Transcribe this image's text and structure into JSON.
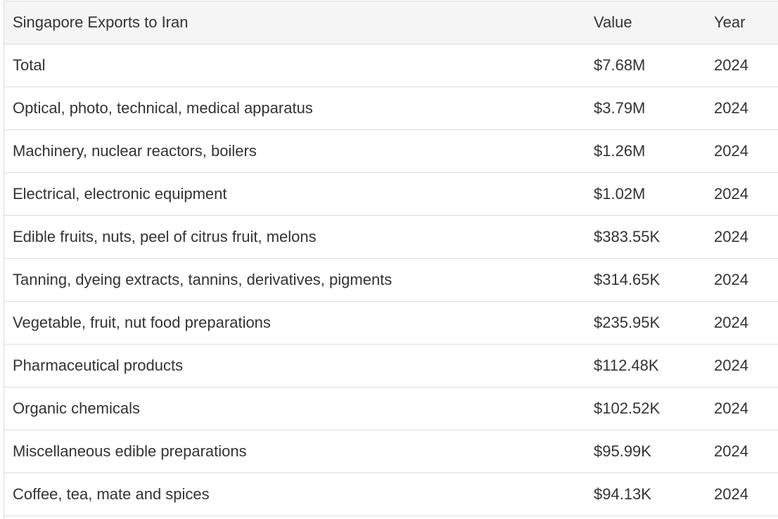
{
  "table": {
    "headers": {
      "name": "Singapore Exports to Iran",
      "value": "Value",
      "year": "Year"
    },
    "rows": [
      {
        "name": "Total",
        "value": "$7.68M",
        "year": "2024"
      },
      {
        "name": "Optical, photo, technical, medical apparatus",
        "value": "$3.79M",
        "year": "2024"
      },
      {
        "name": "Machinery, nuclear reactors, boilers",
        "value": "$1.26M",
        "year": "2024"
      },
      {
        "name": "Electrical, electronic equipment",
        "value": "$1.02M",
        "year": "2024"
      },
      {
        "name": "Edible fruits, nuts, peel of citrus fruit, melons",
        "value": "$383.55K",
        "year": "2024"
      },
      {
        "name": "Tanning, dyeing extracts, tannins, derivatives, pigments",
        "value": "$314.65K",
        "year": "2024"
      },
      {
        "name": "Vegetable, fruit, nut food preparations",
        "value": "$235.95K",
        "year": "2024"
      },
      {
        "name": "Pharmaceutical products",
        "value": "$112.48K",
        "year": "2024"
      },
      {
        "name": "Organic chemicals",
        "value": "$102.52K",
        "year": "2024"
      },
      {
        "name": "Miscellaneous edible preparations",
        "value": "$95.99K",
        "year": "2024"
      },
      {
        "name": "Coffee, tea, mate and spices",
        "value": "$94.13K",
        "year": "2024"
      }
    ]
  },
  "colors": {
    "header_background": "#f5f5f5",
    "border": "#dddddd",
    "text": "#333333"
  }
}
